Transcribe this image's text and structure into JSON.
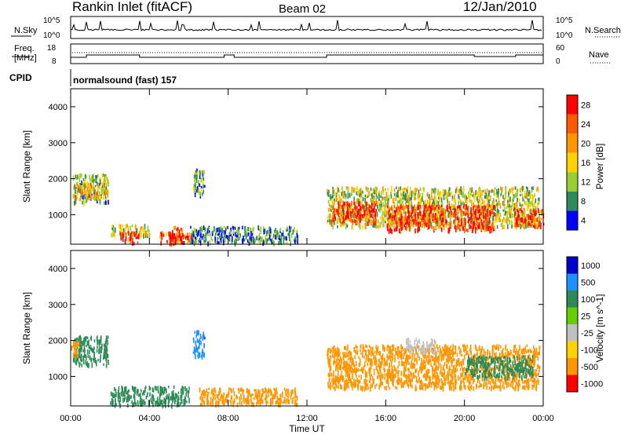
{
  "header": {
    "station": "Rankin Inlet (fitACF)",
    "beam": "Beam 02",
    "date": "12/Jan/2010"
  },
  "status_panels": {
    "nsky_label": "N.Sky",
    "nsky_ticks": [
      "10^5",
      "10^0"
    ],
    "nsearch_label": "N.Search",
    "nsearch_ticks": [
      "10^5",
      "10^0"
    ],
    "freq_label_1": "Freq.",
    "freq_label_2": "[MHz]",
    "freq_ticks": [
      "18",
      "8"
    ],
    "nave_label": "Nave",
    "nave_ticks": [
      "60",
      "0"
    ],
    "cpid_label": "CPID",
    "cpid_value": "normalsound (fast) 157"
  },
  "chart_data": [
    {
      "type": "heatmap",
      "name": "power",
      "ylabel": "Slant Range [km]",
      "yticks": [
        "4000",
        "3000",
        "2000",
        "1000"
      ],
      "ylim": [
        180,
        4500
      ],
      "colorbar_label": "Power [dB]",
      "colorbar_ticks": [
        "28",
        "24",
        "20",
        "16",
        "12",
        "8",
        "4"
      ],
      "colorbar_colors": [
        "#ff0000",
        "#ff5a00",
        "#ff9600",
        "#ffd200",
        "#9acd32",
        "#2e8b57",
        "#0000ff"
      ],
      "regions": [
        {
          "t0": 0.1,
          "t1": 1.9,
          "r0": 1350,
          "r1": 2150,
          "level": 12
        },
        {
          "t0": 0.2,
          "t1": 1.8,
          "r0": 1500,
          "r1": 1900,
          "level": 18
        },
        {
          "t0": 2.0,
          "t1": 4.0,
          "r0": 450,
          "r1": 750,
          "level": 14
        },
        {
          "t0": 2.5,
          "t1": 3.5,
          "r0": 250,
          "r1": 550,
          "level": 28
        },
        {
          "t0": 4.5,
          "t1": 6.2,
          "r0": 250,
          "r1": 550,
          "level": 24
        },
        {
          "t0": 5.0,
          "t1": 5.7,
          "r0": 250,
          "r1": 700,
          "level": 30
        },
        {
          "t0": 6.2,
          "t1": 6.8,
          "r0": 1600,
          "r1": 2300,
          "level": 10
        },
        {
          "t0": 6.0,
          "t1": 11.5,
          "r0": 250,
          "r1": 700,
          "level": 8
        },
        {
          "t0": 13.0,
          "t1": 23.8,
          "r0": 700,
          "r1": 1800,
          "level": 14
        },
        {
          "t0": 13.2,
          "t1": 15.5,
          "r0": 800,
          "r1": 1400,
          "level": 28
        },
        {
          "t0": 16.0,
          "t1": 21.5,
          "r0": 600,
          "r1": 1300,
          "level": 28
        },
        {
          "t0": 22.5,
          "t1": 24.0,
          "r0": 700,
          "r1": 1200,
          "level": 26
        }
      ]
    },
    {
      "type": "heatmap",
      "name": "velocity",
      "ylabel": "Slant Range [km]",
      "yticks": [
        "4000",
        "3000",
        "2000",
        "1000"
      ],
      "ylim": [
        180,
        4500
      ],
      "colorbar_label": "Velocity [m s^-1]",
      "colorbar_ticks": [
        "1000",
        "500",
        "100",
        "25",
        "-25",
        "-100",
        "-500",
        "-1000"
      ],
      "colorbar_colors": [
        "#0000cd",
        "#1e90ff",
        "#2e8b57",
        "#66cd00",
        "#c0c0c0",
        "#ffd200",
        "#ff9600",
        "#ff0000"
      ],
      "regions": [
        {
          "t0": 0.1,
          "t1": 1.9,
          "r0": 1350,
          "r1": 2150,
          "level": 150
        },
        {
          "t0": 0.0,
          "t1": 0.4,
          "r0": 1600,
          "r1": 2000,
          "level": -300
        },
        {
          "t0": 2.0,
          "t1": 6.0,
          "r0": 250,
          "r1": 750,
          "level": 100
        },
        {
          "t0": 6.2,
          "t1": 6.8,
          "r0": 1600,
          "r1": 2300,
          "level": 600
        },
        {
          "t0": 6.5,
          "t1": 11.5,
          "r0": 250,
          "r1": 700,
          "level": -100
        },
        {
          "t0": 13.0,
          "t1": 23.8,
          "r0": 700,
          "r1": 1900,
          "level": -300
        },
        {
          "t0": 17.0,
          "t1": 18.5,
          "r0": 1700,
          "r1": 2100,
          "level": 0
        },
        {
          "t0": 20.0,
          "t1": 23.5,
          "r0": 1000,
          "r1": 1600,
          "level": 150
        }
      ]
    }
  ],
  "time_axis": {
    "label": "Time UT",
    "ticks": [
      "00:00",
      "04:00",
      "08:00",
      "12:00",
      "16:00",
      "20:00",
      "00:00"
    ],
    "xlim_hours": [
      0,
      24
    ]
  }
}
